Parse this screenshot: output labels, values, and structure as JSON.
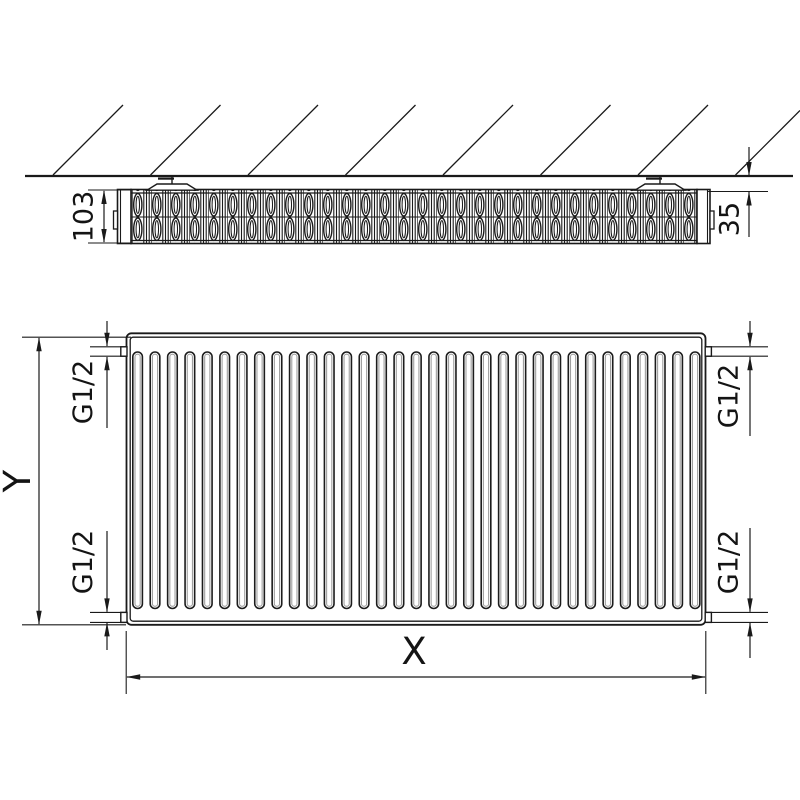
{
  "dimensions": {
    "depth_mm": "103",
    "wall_distance_mm": "35",
    "height_label": "Y",
    "width_label": "X",
    "thread_top_left": "G1/2",
    "thread_bottom_left": "G1/2",
    "thread_top_right": "G1/2",
    "thread_bottom_right": "G1/2"
  },
  "front_view": {
    "fin_count": 33
  },
  "top_view": {
    "convector_channel_pairs": 30
  },
  "colors": {
    "line": "#1a1a1a",
    "background": "#ffffff",
    "fin_inner": "#a0a0a0"
  }
}
